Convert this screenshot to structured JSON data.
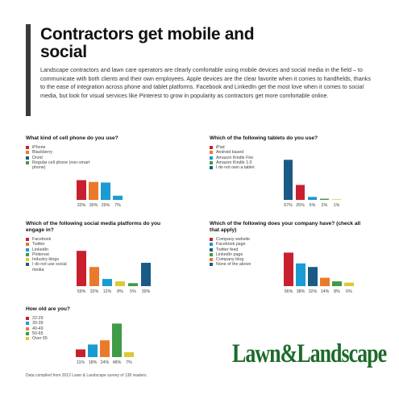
{
  "title": "Contractors get mobile and social",
  "intro": "Landscape contractors and lawn care operators are clearly comfortable using mobile devices and social media in the field – to communicate with both clients and their own employees. Apple devices are the clear favorite when it comes to handhelds, thanks to the ease of integration across phone and tablet platforms. Facebook and LinkedIn get the most love when it comes to social media, but look for visual services like Pinterest to grow in popularity as contractors get more comfortable online.",
  "logo_text": "Lawn&Landscape",
  "footnote": "Data compiled from 2012 Lawn & Landscape survey of 138 readers.",
  "colors": {
    "red": "#c8202f",
    "orange": "#ea7a2b",
    "teal": "#1a9bd2",
    "green": "#3f9b46",
    "yellow": "#dcc933",
    "navy": "#1a5b86"
  },
  "chart_data": [
    {
      "type": "bar",
      "title": "What kind of cell phone do you use?",
      "categories": [
        "iPhone",
        "Blackberry",
        "Droid",
        "Regular cell phone (non-smart phone)"
      ],
      "values": [
        33,
        30,
        29,
        7
      ],
      "value_labels": [
        "33%",
        "30%",
        "29%",
        "7%"
      ],
      "colors": [
        "#c8202f",
        "#ea7a2b",
        "#1a9bd2",
        "#1a9bd2"
      ],
      "legend_colors": [
        "#c8202f",
        "#ea7a2b",
        "#1a5b86",
        "#3f9b46"
      ],
      "ylim": [
        0,
        70
      ]
    },
    {
      "type": "bar",
      "title": "Which of the following tablets do you use?",
      "categories": [
        "iPad",
        "Android based",
        "Amazon Kindle Fire",
        "Amazon Kindle 1.0",
        "I do not own a tablet"
      ],
      "values": [
        67,
        25,
        5,
        2,
        1
      ],
      "value_labels": [
        "67%",
        "25%",
        "5%",
        "2%",
        "1%"
      ],
      "colors": [
        "#1a5b86",
        "#c8202f",
        "#1a9bd2",
        "#3f9b46",
        "#dcc933"
      ],
      "legend_colors": [
        "#c8202f",
        "#ea7a2b",
        "#1a9bd2",
        "#3f9b46",
        "#1a5b86"
      ],
      "ylim": [
        0,
        70
      ]
    },
    {
      "type": "bar",
      "title": "Which of the following social media platforms do you engage in?",
      "categories": [
        "Facebook",
        "Twitter",
        "LinkedIn",
        "Pinterest",
        "Industry blogs",
        "I do not use social media"
      ],
      "values": [
        59,
        32,
        12,
        8,
        5,
        39
      ],
      "value_labels": [
        "59%",
        "32%",
        "12%",
        "8%",
        "5%",
        "39%"
      ],
      "colors": [
        "#c8202f",
        "#ea7a2b",
        "#1a9bd2",
        "#dcc933",
        "#3f9b46",
        "#1a5b86"
      ],
      "legend_colors": [
        "#c8202f",
        "#ea7a2b",
        "#1a9bd2",
        "#3f9b46",
        "#dcc933",
        "#1a5b86"
      ],
      "ylim": [
        0,
        70
      ]
    },
    {
      "type": "bar",
      "title": "Which of the following does your company have? (check all that apply)",
      "categories": [
        "Company website",
        "Facebook page",
        "Twitter feed",
        "LinkedIn page",
        "Company blog",
        "None of the above"
      ],
      "values": [
        56,
        38,
        32,
        14,
        8,
        6
      ],
      "value_labels": [
        "56%",
        "38%",
        "32%",
        "14%",
        "8%",
        "6%"
      ],
      "colors": [
        "#c8202f",
        "#1a9bd2",
        "#1a5b86",
        "#ea7a2b",
        "#3f9b46",
        "#dcc933"
      ],
      "legend_colors": [
        "#c8202f",
        "#1a9bd2",
        "#1a5b86",
        "#3f9b46",
        "#ea7a2b",
        "#1a5b86"
      ],
      "ylim": [
        0,
        70
      ]
    },
    {
      "type": "bar",
      "title": "How old are you?",
      "categories": [
        "22-29",
        "30-39",
        "40-49",
        "50-65",
        "Over 65"
      ],
      "values": [
        11,
        18,
        24,
        48,
        7
      ],
      "value_labels": [
        "11%",
        "18%",
        "24%",
        "48%",
        "7%"
      ],
      "colors": [
        "#c8202f",
        "#1a9bd2",
        "#ea7a2b",
        "#3f9b46",
        "#dcc933"
      ],
      "legend_colors": [
        "#c8202f",
        "#1a9bd2",
        "#ea7a2b",
        "#3f9b46",
        "#dcc933"
      ],
      "ylim": [
        0,
        60
      ]
    }
  ]
}
